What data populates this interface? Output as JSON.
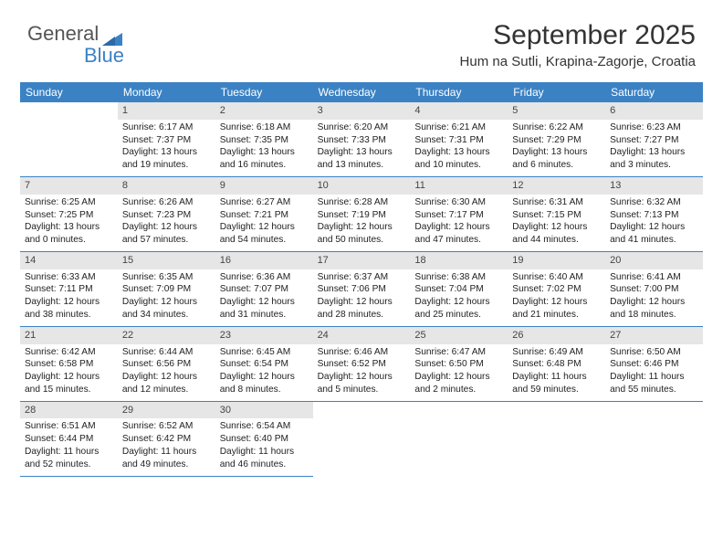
{
  "logo": {
    "text1": "General",
    "text2": "Blue"
  },
  "title": "September 2025",
  "location": "Hum na Sutli, Krapina-Zagorje, Croatia",
  "weekdays": [
    "Sunday",
    "Monday",
    "Tuesday",
    "Wednesday",
    "Thursday",
    "Friday",
    "Saturday"
  ],
  "colors": {
    "headerBlue": "#3b82c4",
    "dayBarGray": "#e6e6e6",
    "background": "#ffffff"
  },
  "typography": {
    "title_fontsize": 30,
    "location_fontsize": 15,
    "weekday_fontsize": 12,
    "cell_fontsize": 10.2
  },
  "days": [
    {
      "num": "1",
      "sunrise": "Sunrise: 6:17 AM",
      "sunset": "Sunset: 7:37 PM",
      "day1": "Daylight: 13 hours",
      "day2": "and 19 minutes."
    },
    {
      "num": "2",
      "sunrise": "Sunrise: 6:18 AM",
      "sunset": "Sunset: 7:35 PM",
      "day1": "Daylight: 13 hours",
      "day2": "and 16 minutes."
    },
    {
      "num": "3",
      "sunrise": "Sunrise: 6:20 AM",
      "sunset": "Sunset: 7:33 PM",
      "day1": "Daylight: 13 hours",
      "day2": "and 13 minutes."
    },
    {
      "num": "4",
      "sunrise": "Sunrise: 6:21 AM",
      "sunset": "Sunset: 7:31 PM",
      "day1": "Daylight: 13 hours",
      "day2": "and 10 minutes."
    },
    {
      "num": "5",
      "sunrise": "Sunrise: 6:22 AM",
      "sunset": "Sunset: 7:29 PM",
      "day1": "Daylight: 13 hours",
      "day2": "and 6 minutes."
    },
    {
      "num": "6",
      "sunrise": "Sunrise: 6:23 AM",
      "sunset": "Sunset: 7:27 PM",
      "day1": "Daylight: 13 hours",
      "day2": "and 3 minutes."
    },
    {
      "num": "7",
      "sunrise": "Sunrise: 6:25 AM",
      "sunset": "Sunset: 7:25 PM",
      "day1": "Daylight: 13 hours",
      "day2": "and 0 minutes."
    },
    {
      "num": "8",
      "sunrise": "Sunrise: 6:26 AM",
      "sunset": "Sunset: 7:23 PM",
      "day1": "Daylight: 12 hours",
      "day2": "and 57 minutes."
    },
    {
      "num": "9",
      "sunrise": "Sunrise: 6:27 AM",
      "sunset": "Sunset: 7:21 PM",
      "day1": "Daylight: 12 hours",
      "day2": "and 54 minutes."
    },
    {
      "num": "10",
      "sunrise": "Sunrise: 6:28 AM",
      "sunset": "Sunset: 7:19 PM",
      "day1": "Daylight: 12 hours",
      "day2": "and 50 minutes."
    },
    {
      "num": "11",
      "sunrise": "Sunrise: 6:30 AM",
      "sunset": "Sunset: 7:17 PM",
      "day1": "Daylight: 12 hours",
      "day2": "and 47 minutes."
    },
    {
      "num": "12",
      "sunrise": "Sunrise: 6:31 AM",
      "sunset": "Sunset: 7:15 PM",
      "day1": "Daylight: 12 hours",
      "day2": "and 44 minutes."
    },
    {
      "num": "13",
      "sunrise": "Sunrise: 6:32 AM",
      "sunset": "Sunset: 7:13 PM",
      "day1": "Daylight: 12 hours",
      "day2": "and 41 minutes."
    },
    {
      "num": "14",
      "sunrise": "Sunrise: 6:33 AM",
      "sunset": "Sunset: 7:11 PM",
      "day1": "Daylight: 12 hours",
      "day2": "and 38 minutes."
    },
    {
      "num": "15",
      "sunrise": "Sunrise: 6:35 AM",
      "sunset": "Sunset: 7:09 PM",
      "day1": "Daylight: 12 hours",
      "day2": "and 34 minutes."
    },
    {
      "num": "16",
      "sunrise": "Sunrise: 6:36 AM",
      "sunset": "Sunset: 7:07 PM",
      "day1": "Daylight: 12 hours",
      "day2": "and 31 minutes."
    },
    {
      "num": "17",
      "sunrise": "Sunrise: 6:37 AM",
      "sunset": "Sunset: 7:06 PM",
      "day1": "Daylight: 12 hours",
      "day2": "and 28 minutes."
    },
    {
      "num": "18",
      "sunrise": "Sunrise: 6:38 AM",
      "sunset": "Sunset: 7:04 PM",
      "day1": "Daylight: 12 hours",
      "day2": "and 25 minutes."
    },
    {
      "num": "19",
      "sunrise": "Sunrise: 6:40 AM",
      "sunset": "Sunset: 7:02 PM",
      "day1": "Daylight: 12 hours",
      "day2": "and 21 minutes."
    },
    {
      "num": "20",
      "sunrise": "Sunrise: 6:41 AM",
      "sunset": "Sunset: 7:00 PM",
      "day1": "Daylight: 12 hours",
      "day2": "and 18 minutes."
    },
    {
      "num": "21",
      "sunrise": "Sunrise: 6:42 AM",
      "sunset": "Sunset: 6:58 PM",
      "day1": "Daylight: 12 hours",
      "day2": "and 15 minutes."
    },
    {
      "num": "22",
      "sunrise": "Sunrise: 6:44 AM",
      "sunset": "Sunset: 6:56 PM",
      "day1": "Daylight: 12 hours",
      "day2": "and 12 minutes."
    },
    {
      "num": "23",
      "sunrise": "Sunrise: 6:45 AM",
      "sunset": "Sunset: 6:54 PM",
      "day1": "Daylight: 12 hours",
      "day2": "and 8 minutes."
    },
    {
      "num": "24",
      "sunrise": "Sunrise: 6:46 AM",
      "sunset": "Sunset: 6:52 PM",
      "day1": "Daylight: 12 hours",
      "day2": "and 5 minutes."
    },
    {
      "num": "25",
      "sunrise": "Sunrise: 6:47 AM",
      "sunset": "Sunset: 6:50 PM",
      "day1": "Daylight: 12 hours",
      "day2": "and 2 minutes."
    },
    {
      "num": "26",
      "sunrise": "Sunrise: 6:49 AM",
      "sunset": "Sunset: 6:48 PM",
      "day1": "Daylight: 11 hours",
      "day2": "and 59 minutes."
    },
    {
      "num": "27",
      "sunrise": "Sunrise: 6:50 AM",
      "sunset": "Sunset: 6:46 PM",
      "day1": "Daylight: 11 hours",
      "day2": "and 55 minutes."
    },
    {
      "num": "28",
      "sunrise": "Sunrise: 6:51 AM",
      "sunset": "Sunset: 6:44 PM",
      "day1": "Daylight: 11 hours",
      "day2": "and 52 minutes."
    },
    {
      "num": "29",
      "sunrise": "Sunrise: 6:52 AM",
      "sunset": "Sunset: 6:42 PM",
      "day1": "Daylight: 11 hours",
      "day2": "and 49 minutes."
    },
    {
      "num": "30",
      "sunrise": "Sunrise: 6:54 AM",
      "sunset": "Sunset: 6:40 PM",
      "day1": "Daylight: 11 hours",
      "day2": "and 46 minutes."
    }
  ],
  "leadingBlanks": 1
}
